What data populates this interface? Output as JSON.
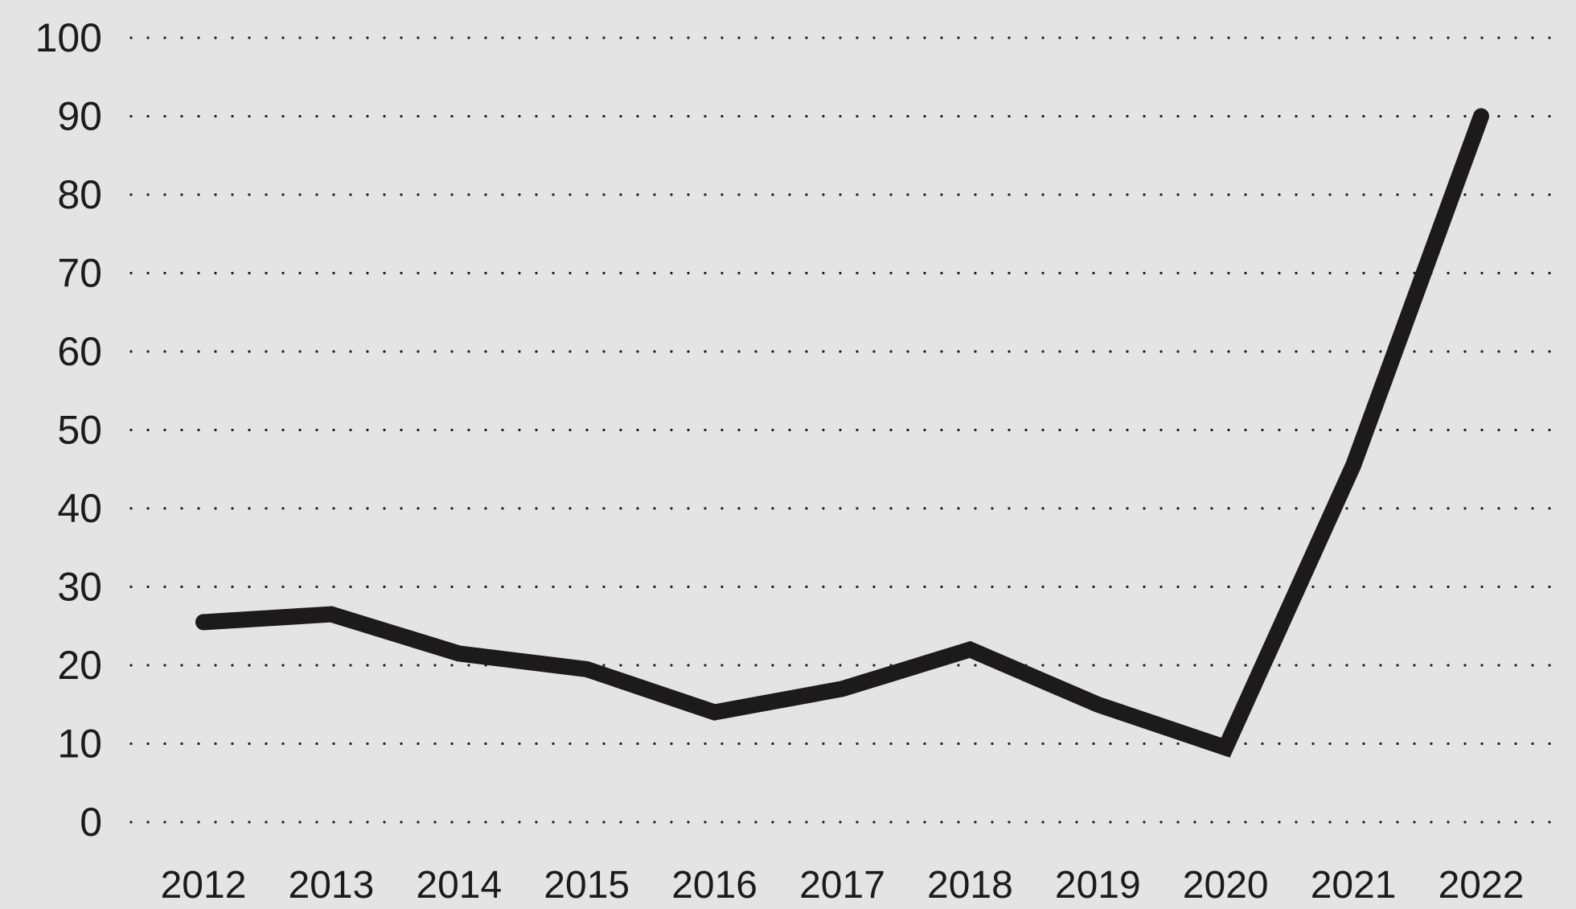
{
  "chart_data": {
    "type": "line",
    "title": "",
    "xlabel": "",
    "ylabel": "",
    "categories": [
      "2012",
      "2013",
      "2014",
      "2015",
      "2016",
      "2017",
      "2018",
      "2019",
      "2020",
      "2021",
      "2022"
    ],
    "series": [
      {
        "values": [
          25.5,
          26.5,
          21.5,
          19.5,
          14,
          17,
          22,
          15,
          9.5,
          45.5,
          90
        ]
      }
    ],
    "ylim": [
      0,
      100
    ],
    "yticks": [
      0,
      10,
      20,
      30,
      40,
      50,
      60,
      70,
      80,
      90,
      100
    ],
    "grid": true,
    "grid_style": "dotted",
    "legend": "none",
    "colors": {
      "background": "#e4e4e4",
      "line": "#1d1a1b",
      "grid": "#1d1a1b",
      "text": "#1d1a1b"
    }
  }
}
